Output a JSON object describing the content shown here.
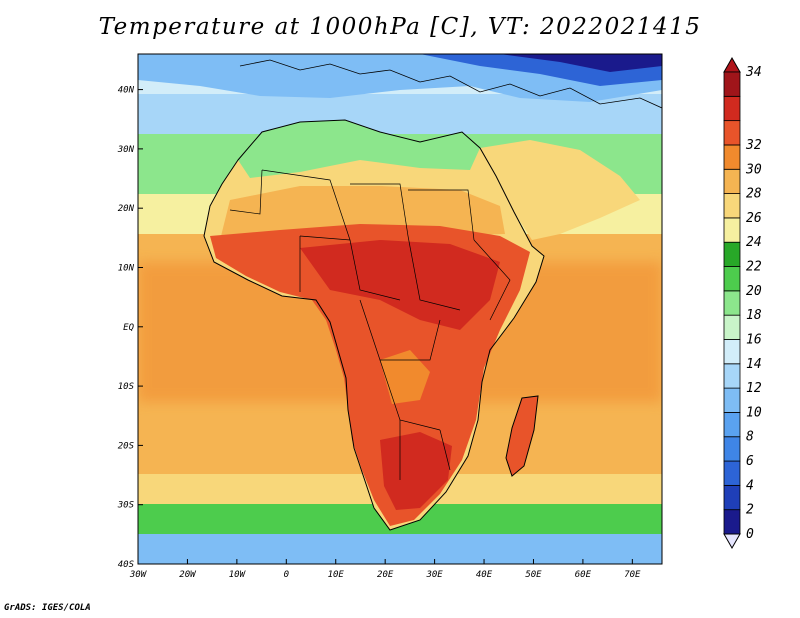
{
  "title": "Temperature at 1000hPa [C], VT: 2022021415",
  "footer": "GrADS: IGES/COLA",
  "map": {
    "type": "filled-contour-map",
    "variable": "Temperature at 1000hPa",
    "units": "C",
    "valid_time": "2022021415",
    "lon_range": [
      -30,
      76
    ],
    "lat_range": [
      -40,
      46
    ],
    "lon_ticks": [
      "30W",
      "20W",
      "10W",
      "0",
      "10E",
      "20E",
      "30E",
      "40E",
      "50E",
      "60E",
      "70E"
    ],
    "lat_ticks": [
      "40S",
      "30S",
      "20S",
      "10S",
      "EQ",
      "10N",
      "20N",
      "30N",
      "40N"
    ],
    "regions": {
      "central_africa_max": 33,
      "sahara": 24,
      "mediterranean_coast": 19,
      "north_sea_areas": 12,
      "southern_ocean": 18
    }
  },
  "colorbar": {
    "levels": [
      "0",
      "2",
      "4",
      "6",
      "8",
      "10",
      "12",
      "14",
      "16",
      "18",
      "20",
      "22",
      "24",
      "26",
      "28",
      "30",
      "32",
      "34"
    ],
    "colors": [
      "#1a1a8c",
      "#1f3fb8",
      "#2d64d6",
      "#3f85e6",
      "#5aa2f0",
      "#7ebdf5",
      "#a7d6f8",
      "#d2edf9",
      "#c9f5c9",
      "#8ce68c",
      "#4dcc4d",
      "#28a828",
      "#f6f0a0",
      "#f8d77a",
      "#f5b452",
      "#f18a2d",
      "#e8542a",
      "#d12a1f",
      "#a0151a"
    ],
    "under_color": "#e6e6ff",
    "over_color": "#b0141a"
  }
}
